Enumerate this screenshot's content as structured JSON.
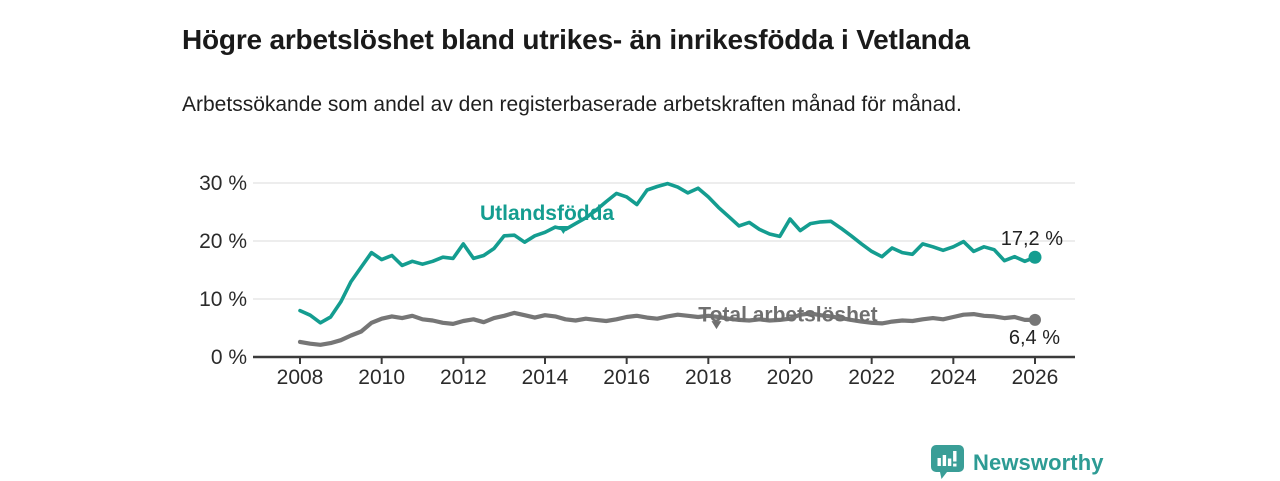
{
  "header": {
    "title": "Högre arbetslöshet bland utrikes- än inrikesfödda i Vetlanda",
    "subtitle": "Arbetssökande som andel av den registerbaserade arbetskraften månad för månad."
  },
  "chart_data": {
    "type": "line",
    "unit": "%",
    "grid": "horizontal gridlines at 10/20/30, x-axis baseline at 0",
    "legend_position": "labels drawn on chart next to lines",
    "x_start": 2008,
    "x_step": 0.25,
    "xlim": [
      2006.85,
      2027
    ],
    "ylim": [
      0,
      32
    ],
    "yticks": {
      "values": [
        0,
        10,
        20,
        30
      ],
      "labels": [
        "0 %",
        "10 %",
        "20 %",
        "30 %"
      ]
    },
    "xticks": {
      "values": [
        2008,
        2010,
        2012,
        2014,
        2016,
        2018,
        2020,
        2022,
        2024,
        2026
      ],
      "labels": [
        "2008",
        "2010",
        "2012",
        "2014",
        "2016",
        "2018",
        "2020",
        "2022",
        "2024",
        "2026"
      ]
    },
    "series": [
      {
        "name": "Utlandsfödda",
        "color": "#149d90",
        "end_label": "17,2 %",
        "end_value": 17.2,
        "values": [
          8.0,
          7.2,
          5.9,
          6.9,
          9.5,
          13.0,
          15.5,
          18.0,
          16.8,
          17.5,
          15.8,
          16.5,
          16.0,
          16.5,
          17.2,
          17.0,
          19.5,
          17.0,
          17.5,
          18.7,
          20.9,
          21.0,
          19.8,
          20.9,
          21.5,
          22.4,
          22.0,
          23.0,
          24.0,
          25.3,
          26.8,
          28.2,
          27.6,
          26.3,
          28.8,
          29.4,
          29.9,
          29.3,
          28.3,
          29.1,
          27.6,
          25.8,
          24.2,
          22.6,
          23.2,
          22.0,
          21.2,
          20.8,
          23.8,
          21.8,
          23.0,
          23.3,
          23.4,
          22.2,
          20.9,
          19.5,
          18.2,
          17.3,
          18.8,
          18.0,
          17.7,
          19.5,
          19.0,
          18.4,
          19.0,
          19.9,
          18.2,
          19.0,
          18.5,
          16.6,
          17.3,
          16.5,
          17.2
        ]
      },
      {
        "name": "Total arbetslöshet",
        "color": "#767676",
        "end_label": "6,4 %",
        "end_value": 6.4,
        "values": [
          2.6,
          2.3,
          2.1,
          2.4,
          2.9,
          3.7,
          4.4,
          5.9,
          6.6,
          7.0,
          6.7,
          7.1,
          6.5,
          6.3,
          5.9,
          5.7,
          6.2,
          6.5,
          6.0,
          6.7,
          7.1,
          7.6,
          7.2,
          6.8,
          7.2,
          7.0,
          6.5,
          6.3,
          6.6,
          6.4,
          6.2,
          6.5,
          6.9,
          7.1,
          6.8,
          6.6,
          7.0,
          7.3,
          7.1,
          6.9,
          7.1,
          6.9,
          6.6,
          6.4,
          6.3,
          6.5,
          6.3,
          6.4,
          6.6,
          7.3,
          7.5,
          7.2,
          7.0,
          6.7,
          6.4,
          6.1,
          5.9,
          5.8,
          6.1,
          6.3,
          6.2,
          6.5,
          6.7,
          6.5,
          6.9,
          7.3,
          7.4,
          7.1,
          7.0,
          6.7,
          6.9,
          6.4,
          6.4
        ]
      }
    ],
    "series_labels": [
      {
        "text": "Utlandsfödda",
        "year": 2014.05,
        "pct": 24.8,
        "marker_year": 2014.45,
        "marker_pct": 21.9,
        "color": "#149d90"
      },
      {
        "text": "Total arbetslöshet",
        "year": 2019.95,
        "pct": 7.3,
        "marker_year": 2018.2,
        "marker_pct": 5.5,
        "color": "#6f6f6f"
      }
    ]
  },
  "footer": {
    "brand": "Newsworthy",
    "brand_color": "#2d9b94"
  }
}
